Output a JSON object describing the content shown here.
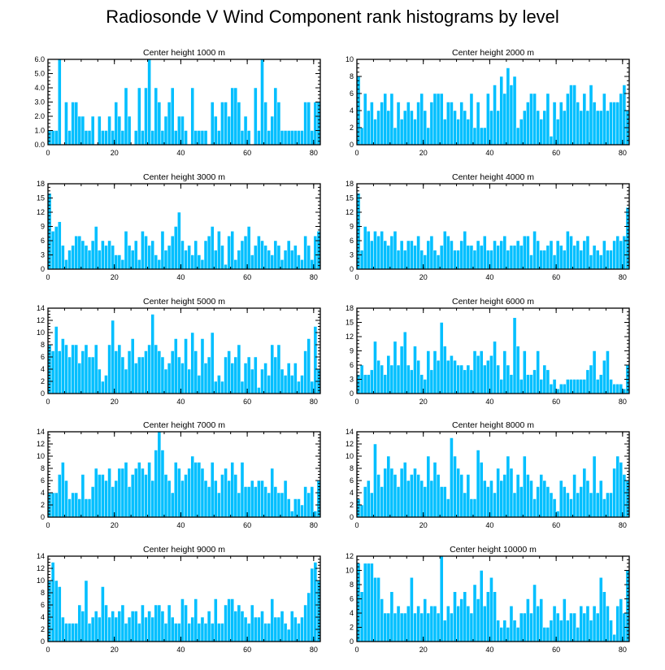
{
  "title": "Radiosonde V Wind Component rank histograms by level",
  "colors": {
    "bar": "#00bfff",
    "axis": "#000000",
    "bar_edge": "#ffffff"
  },
  "chart_data": [
    {
      "type": "bar",
      "title": "Center height 1000 m",
      "xlim": [
        0,
        82
      ],
      "ylim": [
        0,
        6
      ],
      "xticks": [
        0,
        20,
        40,
        60,
        80
      ],
      "yticks": [
        0,
        1,
        2,
        3,
        4,
        5,
        6
      ],
      "ytick_labels": [
        "0.0",
        "1.0",
        "2.0",
        "3.0",
        "4.0",
        "5.0",
        "6.0"
      ],
      "values": [
        1,
        1,
        1,
        6,
        0,
        3,
        1,
        3,
        3,
        2,
        2,
        1,
        1,
        2,
        0,
        2,
        1,
        1,
        2,
        1,
        3,
        2,
        1,
        4,
        2,
        0,
        1,
        4,
        1,
        4,
        6,
        1,
        4,
        3,
        1,
        2,
        3,
        4,
        1,
        2,
        2,
        1,
        0,
        4,
        1,
        1,
        1,
        1,
        0,
        3,
        2,
        1,
        3,
        3,
        2,
        4,
        4,
        3,
        1,
        2,
        1,
        0,
        4,
        1,
        6,
        3,
        1,
        2,
        4,
        3,
        1,
        1,
        1,
        1,
        1,
        1,
        1,
        3,
        3,
        1,
        3,
        3
      ]
    },
    {
      "type": "bar",
      "title": "Center height 2000 m",
      "xlim": [
        0,
        82
      ],
      "ylim": [
        0,
        10
      ],
      "xticks": [
        0,
        20,
        40,
        60,
        80
      ],
      "yticks": [
        0,
        2,
        4,
        6,
        8,
        10
      ],
      "values": [
        8,
        2,
        6,
        4,
        5,
        3,
        4,
        5,
        6,
        4,
        6,
        2,
        5,
        3,
        4,
        5,
        4,
        3,
        5,
        6,
        4,
        2,
        5,
        6,
        6,
        6,
        3,
        5,
        5,
        4,
        3,
        5,
        4,
        3,
        6,
        2,
        5,
        2,
        2,
        6,
        4,
        7,
        4,
        8,
        6,
        9,
        7,
        8,
        2,
        3,
        4,
        5,
        6,
        6,
        4,
        3,
        4,
        6,
        1,
        5,
        3,
        5,
        4,
        6,
        7,
        7,
        5,
        4,
        6,
        4,
        7,
        5,
        4,
        4,
        6,
        4,
        5,
        5,
        5,
        6,
        7,
        4
      ]
    },
    {
      "type": "bar",
      "title": "Center height 3000 m",
      "xlim": [
        0,
        82
      ],
      "ylim": [
        0,
        18
      ],
      "xticks": [
        0,
        20,
        40,
        60,
        80
      ],
      "yticks": [
        0,
        3,
        6,
        9,
        12,
        15,
        18
      ],
      "values": [
        16,
        8,
        9,
        10,
        5,
        2,
        4,
        5,
        7,
        7,
        6,
        5,
        4,
        6,
        9,
        4,
        6,
        5,
        6,
        5,
        3,
        3,
        2,
        8,
        5,
        4,
        6,
        2,
        8,
        7,
        5,
        6,
        3,
        2,
        8,
        4,
        5,
        7,
        9,
        12,
        6,
        4,
        5,
        3,
        6,
        3,
        2,
        6,
        7,
        9,
        4,
        8,
        5,
        1,
        7,
        8,
        2,
        4,
        6,
        7,
        9,
        3,
        5,
        7,
        6,
        5,
        4,
        3,
        6,
        5,
        2,
        4,
        6,
        4,
        5,
        3,
        2,
        7,
        5,
        2,
        7,
        8
      ]
    },
    {
      "type": "bar",
      "title": "Center height 4000 m",
      "xlim": [
        0,
        82
      ],
      "ylim": [
        0,
        18
      ],
      "xticks": [
        0,
        20,
        40,
        60,
        80
      ],
      "yticks": [
        0,
        3,
        6,
        9,
        12,
        15,
        18
      ],
      "values": [
        16,
        4,
        9,
        8,
        6,
        8,
        7,
        8,
        6,
        5,
        7,
        8,
        4,
        6,
        4,
        6,
        6,
        5,
        7,
        4,
        3,
        6,
        7,
        4,
        3,
        5,
        8,
        7,
        6,
        4,
        4,
        6,
        8,
        5,
        5,
        4,
        6,
        5,
        7,
        4,
        4,
        6,
        5,
        6,
        7,
        4,
        5,
        5,
        6,
        5,
        7,
        7,
        3,
        8,
        6,
        4,
        4,
        5,
        6,
        3,
        6,
        5,
        4,
        8,
        7,
        5,
        6,
        4,
        6,
        7,
        3,
        5,
        4,
        3,
        6,
        4,
        4,
        6,
        7,
        6,
        7,
        13
      ]
    },
    {
      "type": "bar",
      "title": "Center height 5000 m",
      "xlim": [
        0,
        82
      ],
      "ylim": [
        0,
        14
      ],
      "xticks": [
        0,
        20,
        40,
        60,
        80
      ],
      "yticks": [
        0,
        2,
        4,
        6,
        8,
        10,
        12,
        14
      ],
      "values": [
        8,
        7,
        11,
        7,
        9,
        8,
        6,
        8,
        8,
        5,
        7,
        8,
        6,
        6,
        8,
        4,
        2,
        3,
        8,
        12,
        7,
        8,
        6,
        4,
        7,
        9,
        5,
        6,
        6,
        7,
        8,
        13,
        8,
        7,
        6,
        4,
        5,
        7,
        9,
        6,
        5,
        9,
        4,
        10,
        7,
        3,
        9,
        5,
        6,
        10,
        2,
        3,
        2,
        6,
        7,
        5,
        6,
        8,
        2,
        5,
        6,
        4,
        6,
        1,
        4,
        5,
        3,
        8,
        6,
        8,
        4,
        3,
        5,
        3,
        5,
        2,
        3,
        7,
        9,
        2,
        11,
        4
      ]
    },
    {
      "type": "bar",
      "title": "Center height 6000 m",
      "xlim": [
        0,
        82
      ],
      "ylim": [
        0,
        18
      ],
      "xticks": [
        0,
        20,
        40,
        60,
        80
      ],
      "yticks": [
        0,
        3,
        6,
        9,
        12,
        15,
        18
      ],
      "values": [
        4,
        6,
        4,
        4,
        5,
        11,
        7,
        6,
        4,
        8,
        6,
        11,
        6,
        10,
        13,
        6,
        5,
        10,
        7,
        4,
        3,
        9,
        5,
        9,
        7,
        15,
        10,
        7,
        8,
        7,
        6,
        6,
        5,
        6,
        5,
        9,
        8,
        9,
        6,
        7,
        8,
        11,
        6,
        3,
        9,
        6,
        4,
        16,
        10,
        3,
        9,
        4,
        4,
        5,
        9,
        3,
        6,
        5,
        2,
        3,
        1,
        2,
        2,
        3,
        3,
        3,
        3,
        3,
        3,
        5,
        6,
        9,
        3,
        4,
        7,
        9,
        3,
        2,
        2,
        2,
        1,
        6
      ]
    },
    {
      "type": "bar",
      "title": "Center height 7000 m",
      "xlim": [
        0,
        82
      ],
      "ylim": [
        0,
        14
      ],
      "xticks": [
        0,
        20,
        40,
        60,
        80
      ],
      "yticks": [
        0,
        2,
        4,
        6,
        8,
        10,
        12,
        14
      ],
      "values": [
        4,
        4,
        4,
        7,
        9,
        6,
        3,
        4,
        4,
        3,
        7,
        3,
        3,
        5,
        8,
        7,
        7,
        6,
        8,
        5,
        6,
        8,
        8,
        9,
        5,
        7,
        8,
        9,
        8,
        7,
        9,
        6,
        11,
        14,
        11,
        7,
        6,
        4,
        9,
        8,
        6,
        7,
        8,
        10,
        9,
        9,
        8,
        6,
        5,
        9,
        6,
        4,
        7,
        8,
        6,
        9,
        7,
        4,
        9,
        5,
        5,
        6,
        5,
        6,
        6,
        5,
        4,
        8,
        5,
        4,
        4,
        6,
        3,
        1,
        3,
        3,
        2,
        5,
        4,
        5,
        1,
        6
      ]
    },
    {
      "type": "bar",
      "title": "Center height 8000 m",
      "xlim": [
        0,
        82
      ],
      "ylim": [
        0,
        14
      ],
      "xticks": [
        0,
        20,
        40,
        60,
        80
      ],
      "yticks": [
        0,
        2,
        4,
        6,
        8,
        10,
        12,
        14
      ],
      "values": [
        3,
        2,
        5,
        6,
        4,
        12,
        7,
        5,
        8,
        10,
        8,
        7,
        5,
        8,
        9,
        6,
        7,
        8,
        7,
        6,
        5,
        10,
        6,
        9,
        7,
        5,
        5,
        3,
        13,
        10,
        8,
        7,
        4,
        7,
        3,
        3,
        11,
        9,
        6,
        5,
        6,
        4,
        8,
        6,
        7,
        10,
        8,
        4,
        7,
        5,
        10,
        7,
        6,
        3,
        5,
        7,
        6,
        5,
        4,
        3,
        1,
        6,
        5,
        4,
        3,
        7,
        4,
        5,
        8,
        6,
        4,
        10,
        4,
        6,
        3,
        4,
        4,
        8,
        10,
        9,
        7,
        6
      ]
    },
    {
      "type": "bar",
      "title": "Center height 9000 m",
      "xlim": [
        0,
        82
      ],
      "ylim": [
        0,
        14
      ],
      "xticks": [
        0,
        20,
        40,
        60,
        80
      ],
      "yticks": [
        0,
        2,
        4,
        6,
        8,
        10,
        12,
        14
      ],
      "values": [
        10,
        13,
        10,
        9,
        4,
        3,
        3,
        3,
        3,
        6,
        5,
        10,
        3,
        4,
        5,
        4,
        9,
        6,
        4,
        5,
        4,
        5,
        6,
        3,
        4,
        5,
        5,
        3,
        6,
        4,
        5,
        4,
        6,
        6,
        5,
        3,
        6,
        4,
        3,
        3,
        7,
        6,
        3,
        4,
        7,
        3,
        4,
        3,
        5,
        3,
        7,
        3,
        3,
        6,
        7,
        7,
        5,
        6,
        5,
        4,
        3,
        6,
        4,
        4,
        5,
        3,
        3,
        7,
        4,
        4,
        5,
        3,
        2,
        5,
        4,
        3,
        4,
        6,
        8,
        12,
        13,
        10
      ]
    },
    {
      "type": "bar",
      "title": "Center height 10000 m",
      "xlim": [
        0,
        82
      ],
      "ylim": [
        0,
        12
      ],
      "xticks": [
        0,
        20,
        40,
        60,
        80
      ],
      "yticks": [
        0,
        2,
        4,
        6,
        8,
        10,
        12
      ],
      "values": [
        11,
        7,
        11,
        11,
        11,
        9,
        9,
        6,
        4,
        4,
        7,
        4,
        5,
        4,
        4,
        5,
        9,
        4,
        5,
        4,
        6,
        4,
        5,
        5,
        4,
        12,
        3,
        5,
        4,
        7,
        5,
        6,
        7,
        5,
        4,
        8,
        6,
        10,
        5,
        7,
        9,
        7,
        3,
        2,
        3,
        2,
        5,
        3,
        2,
        4,
        4,
        6,
        4,
        8,
        5,
        6,
        2,
        2,
        3,
        5,
        4,
        3,
        6,
        3,
        4,
        4,
        2,
        5,
        4,
        5,
        3,
        5,
        4,
        9,
        7,
        5,
        3,
        1,
        5,
        6,
        4,
        10
      ]
    }
  ]
}
